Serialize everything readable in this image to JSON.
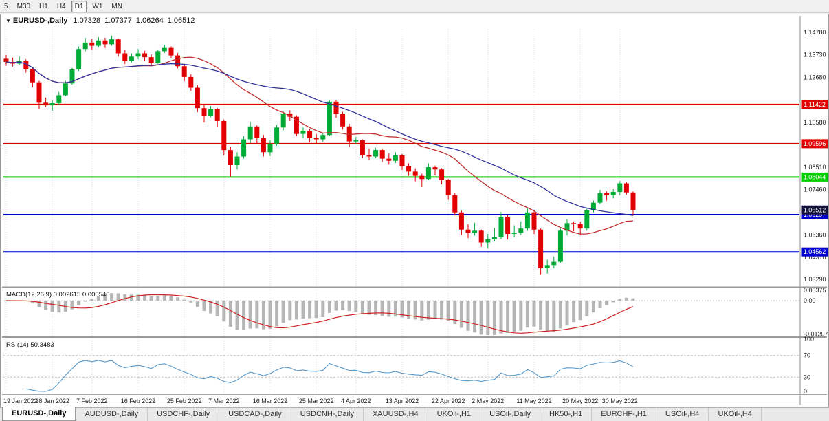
{
  "toolbar": {
    "timeframes": [
      "5",
      "M30",
      "H1",
      "H4",
      "D1",
      "W1",
      "MN"
    ],
    "active": "D1"
  },
  "header": {
    "dropdown_icon": "▼",
    "symbol": "EURUSD-,Daily",
    "open": "1.07328",
    "high": "1.07377",
    "low": "1.06264",
    "close": "1.06512"
  },
  "chart_data": {
    "type": "candlestick",
    "symbol": "EURUSD",
    "timeframe": "Daily",
    "price_axis": {
      "ticks": [
        "1.14780",
        "1.13730",
        "1.12680",
        "1.10580",
        "1.08510",
        "1.07460",
        "1.05360",
        "1.04310",
        "1.03290"
      ],
      "current_price": {
        "label": "1.06512",
        "color": "#101038"
      }
    },
    "levels": [
      {
        "price": 1.11422,
        "label": "1.11422",
        "color": "#e00000"
      },
      {
        "price": 1.09596,
        "label": "1.09596",
        "color": "#e00000"
      },
      {
        "price": 1.08044,
        "label": "1.08044",
        "color": "#00cc00"
      },
      {
        "price": 1.06297,
        "label": "1.06297",
        "color": "#0000d0"
      },
      {
        "price": 1.04562,
        "label": "1.04562",
        "color": "#0000d0"
      }
    ],
    "date_labels": [
      [
        0,
        "19 Jan 2022"
      ],
      [
        7,
        "28 Jan 2022"
      ],
      [
        13,
        "7 Feb 2022"
      ],
      [
        20,
        "16 Feb 2022"
      ],
      [
        27,
        "25 Feb 2022"
      ],
      [
        33,
        "7 Mar 2022"
      ],
      [
        40,
        "16 Mar 2022"
      ],
      [
        47,
        "25 Mar 2022"
      ],
      [
        53,
        "4 Apr 2022"
      ],
      [
        60,
        "13 Apr 2022"
      ],
      [
        67,
        "22 Apr 2022"
      ],
      [
        73,
        "2 May 2022"
      ],
      [
        80,
        "11 May 2022"
      ],
      [
        87,
        "20 May 2022"
      ],
      [
        93,
        "30 May 2022"
      ]
    ],
    "moving_averages": [
      {
        "name": "ma-fast",
        "period": 20,
        "color": "#c03030"
      },
      {
        "name": "ma-slow",
        "period": 34,
        "color": "#33339e"
      }
    ],
    "indicators": {
      "macd": {
        "label": "MACD(12,26,9)",
        "value_main": "0.002615",
        "value_signal": "0.000540",
        "scale": [
          "0.00375",
          "0.00",
          "-0.01207"
        ],
        "histogram_color": "#b5b5b5",
        "signal_color": "#cc2020"
      },
      "rsi": {
        "label": "RSI(14)",
        "value": "50.3483",
        "scale": [
          "100",
          "70",
          "30",
          "0"
        ],
        "guide_levels": [
          70,
          30
        ],
        "line_color": "#5599cc"
      }
    },
    "candles": [
      [
        1.1355,
        1.1372,
        1.1322,
        1.134
      ],
      [
        1.134,
        1.136,
        1.1318,
        1.1332
      ],
      [
        1.1332,
        1.1366,
        1.1325,
        1.1346
      ],
      [
        1.1346,
        1.1352,
        1.129,
        1.1305
      ],
      [
        1.1305,
        1.1316,
        1.1222,
        1.1245
      ],
      [
        1.1245,
        1.1252,
        1.1121,
        1.115
      ],
      [
        1.115,
        1.1174,
        1.113,
        1.1138
      ],
      [
        1.1138,
        1.1162,
        1.1112,
        1.1148
      ],
      [
        1.1148,
        1.12,
        1.114,
        1.1185
      ],
      [
        1.1185,
        1.1252,
        1.118,
        1.124
      ],
      [
        1.124,
        1.1312,
        1.1234,
        1.1305
      ],
      [
        1.1305,
        1.1412,
        1.1298,
        1.14
      ],
      [
        1.14,
        1.1452,
        1.139,
        1.143
      ],
      [
        1.143,
        1.1446,
        1.1398,
        1.1415
      ],
      [
        1.1415,
        1.1455,
        1.1408,
        1.144
      ],
      [
        1.144,
        1.1452,
        1.1405,
        1.1422
      ],
      [
        1.1422,
        1.1462,
        1.1415,
        1.1445
      ],
      [
        1.1445,
        1.145,
        1.1365,
        1.138
      ],
      [
        1.138,
        1.1398,
        1.133,
        1.1345
      ],
      [
        1.1345,
        1.138,
        1.1338,
        1.1365
      ],
      [
        1.1365,
        1.14,
        1.1352,
        1.138
      ],
      [
        1.138,
        1.1392,
        1.1345,
        1.1362
      ],
      [
        1.1362,
        1.1375,
        1.132,
        1.1335
      ],
      [
        1.1335,
        1.1398,
        1.133,
        1.139
      ],
      [
        1.139,
        1.142,
        1.1382,
        1.1405
      ],
      [
        1.1405,
        1.1412,
        1.1358,
        1.137
      ],
      [
        1.137,
        1.1382,
        1.131,
        1.132
      ],
      [
        1.132,
        1.133,
        1.125,
        1.127
      ],
      [
        1.127,
        1.1282,
        1.1205,
        1.122
      ],
      [
        1.122,
        1.1232,
        1.1106,
        1.1125
      ],
      [
        1.1125,
        1.114,
        1.1058,
        1.109
      ],
      [
        1.109,
        1.1135,
        1.1082,
        1.112
      ],
      [
        1.112,
        1.1126,
        1.1038,
        1.1065
      ],
      [
        1.1065,
        1.1072,
        1.0905,
        1.093
      ],
      [
        1.093,
        1.0945,
        1.0805,
        1.086
      ],
      [
        1.086,
        1.092,
        1.084,
        1.09
      ],
      [
        1.09,
        1.0995,
        1.089,
        1.098
      ],
      [
        1.098,
        1.106,
        1.0962,
        1.104
      ],
      [
        1.104,
        1.1045,
        1.096,
        1.0985
      ],
      [
        1.0985,
        1.1,
        1.09,
        1.092
      ],
      [
        1.092,
        1.0975,
        1.0902,
        1.096
      ],
      [
        1.096,
        1.1048,
        1.095,
        1.1035
      ],
      [
        1.1035,
        1.111,
        1.1022,
        1.11
      ],
      [
        1.11,
        1.1115,
        1.1065,
        1.1085
      ],
      [
        1.1085,
        1.1092,
        1.0995,
        1.1005
      ],
      [
        1.1005,
        1.1035,
        1.0985,
        1.102
      ],
      [
        1.102,
        1.1028,
        1.0965,
        1.0985
      ],
      [
        1.0985,
        1.1005,
        1.0962,
        1.098
      ],
      [
        1.098,
        1.101,
        1.0968,
        1.1
      ],
      [
        1.1,
        1.116,
        1.0995,
        1.1155
      ],
      [
        1.1155,
        1.1162,
        1.108,
        1.11
      ],
      [
        1.11,
        1.1108,
        1.1025,
        1.104
      ],
      [
        1.104,
        1.1052,
        1.0945,
        1.097
      ],
      [
        1.097,
        1.0992,
        1.0958,
        1.0975
      ],
      [
        1.0975,
        1.098,
        1.0895,
        1.0905
      ],
      [
        1.0905,
        1.0938,
        1.0885,
        1.09
      ],
      [
        1.09,
        1.094,
        1.0892,
        1.093
      ],
      [
        1.093,
        1.0938,
        1.0875,
        1.089
      ],
      [
        1.089,
        1.0915,
        1.0862,
        1.088
      ],
      [
        1.088,
        1.092,
        1.087,
        1.0905
      ],
      [
        1.0905,
        1.0912,
        1.0838,
        1.0855
      ],
      [
        1.0855,
        1.0868,
        1.081,
        1.083
      ],
      [
        1.083,
        1.0845,
        1.0785,
        1.081
      ],
      [
        1.081,
        1.082,
        1.0758,
        1.0795
      ],
      [
        1.0795,
        1.0868,
        1.079,
        1.085
      ],
      [
        1.085,
        1.0858,
        1.0812,
        1.084
      ],
      [
        1.084,
        1.0846,
        1.077,
        1.079
      ],
      [
        1.079,
        1.0795,
        1.0698,
        1.072
      ],
      [
        1.072,
        1.0732,
        1.0625,
        1.064
      ],
      [
        1.064,
        1.0648,
        1.0535,
        1.056
      ],
      [
        1.056,
        1.0585,
        1.052,
        1.0545
      ],
      [
        1.0545,
        1.0592,
        1.0532,
        1.0555
      ],
      [
        1.0555,
        1.056,
        1.048,
        1.05
      ],
      [
        1.05,
        1.054,
        1.0472,
        1.0515
      ],
      [
        1.0515,
        1.0568,
        1.0505,
        1.0525
      ],
      [
        1.0525,
        1.0642,
        1.0515,
        1.062
      ],
      [
        1.062,
        1.0628,
        1.0515,
        1.054
      ],
      [
        1.054,
        1.058,
        1.0525,
        1.0545
      ],
      [
        1.0545,
        1.0598,
        1.0535,
        1.0565
      ],
      [
        1.0565,
        1.0658,
        1.0555,
        1.064
      ],
      [
        1.064,
        1.0645,
        1.054,
        1.056
      ],
      [
        1.056,
        1.0565,
        1.035,
        1.038
      ],
      [
        1.038,
        1.042,
        1.0355,
        1.0395
      ],
      [
        1.0395,
        1.0435,
        1.038,
        1.041
      ],
      [
        1.041,
        1.0565,
        1.0405,
        1.0555
      ],
      [
        1.0555,
        1.0608,
        1.0533,
        1.059
      ],
      [
        1.059,
        1.0598,
        1.0552,
        1.0585
      ],
      [
        1.0585,
        1.0598,
        1.0533,
        1.0565
      ],
      [
        1.0565,
        1.0662,
        1.0555,
        1.065
      ],
      [
        1.065,
        1.0695,
        1.064,
        1.0685
      ],
      [
        1.0685,
        1.0745,
        1.0678,
        1.073
      ],
      [
        1.073,
        1.0738,
        1.0695,
        1.072
      ],
      [
        1.072,
        1.0748,
        1.0705,
        1.0735
      ],
      [
        1.0735,
        1.0786,
        1.072,
        1.0775
      ],
      [
        1.0775,
        1.078,
        1.0722,
        1.0733
      ],
      [
        1.07328,
        1.07377,
        1.06264,
        1.06512
      ]
    ],
    "colors": {
      "bull": "#00ab35",
      "bear": "#e00000",
      "grid": "#dcdcdc"
    }
  },
  "tabs": {
    "active_index": 0,
    "items": [
      "EURUSD-,Daily",
      "AUDUSD-,Daily",
      "USDCHF-,Daily",
      "USDCAD-,Daily",
      "USDCNH-,Daily",
      "XAUUSD-,H4",
      "UKOil-,H1",
      "USOil-,Daily",
      "HK50-,H1",
      "EURCHF-,H1",
      "USOil-,H4",
      "UKOil-,H4"
    ]
  }
}
